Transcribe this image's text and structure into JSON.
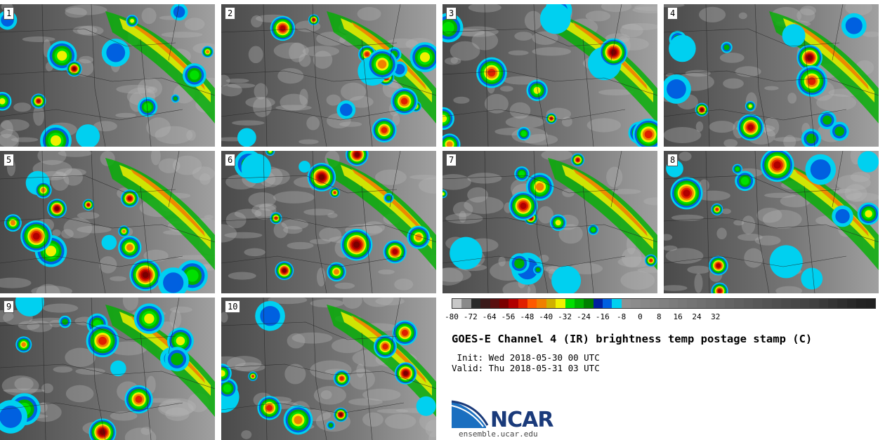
{
  "title": "GOES-E Channel 4 (IR) brightness temp postage stamp (C)",
  "init": " Init: Wed 2018-05-30 00 UTC",
  "valid": "Valid: Thu 2018-05-31 03 UTC",
  "logo_text": "NCAR",
  "site": "ensemble.ucar.edu",
  "panels": [
    {
      "label": "1"
    },
    {
      "label": "2"
    },
    {
      "label": "3"
    },
    {
      "label": "4"
    },
    {
      "label": "5"
    },
    {
      "label": "6"
    },
    {
      "label": "7"
    },
    {
      "label": "8"
    },
    {
      "label": "9"
    },
    {
      "label": "10"
    }
  ],
  "colorbar": {
    "ticks": [
      "-80",
      "-72",
      "-64",
      "-56",
      "-48",
      "-40",
      "-32",
      "-24",
      "-16",
      "-8",
      "0",
      "8",
      "16",
      "24",
      "32"
    ],
    "colors": [
      "#c8c8c8",
      "#8a8a8a",
      "#2a2a2a",
      "#3a1a1a",
      "#5a1010",
      "#7a0000",
      "#b00000",
      "#e02000",
      "#ff5a00",
      "#f08000",
      "#d0b000",
      "#f0f000",
      "#00e000",
      "#00b000",
      "#008000",
      "#0020a0",
      "#0060e0",
      "#00d0f0",
      "#909090",
      "#8c8c8c",
      "#888888",
      "#848484",
      "#808080",
      "#7c7c7c",
      "#787878",
      "#747474",
      "#707070",
      "#6c6c6c",
      "#686868",
      "#646464",
      "#606060",
      "#5c5c5c",
      "#585858",
      "#545454",
      "#505050",
      "#4c4c4c",
      "#484848",
      "#444444",
      "#404040",
      "#3a3a3a",
      "#343434",
      "#2e2e2e",
      "#282828",
      "#222222",
      "#202020"
    ]
  }
}
